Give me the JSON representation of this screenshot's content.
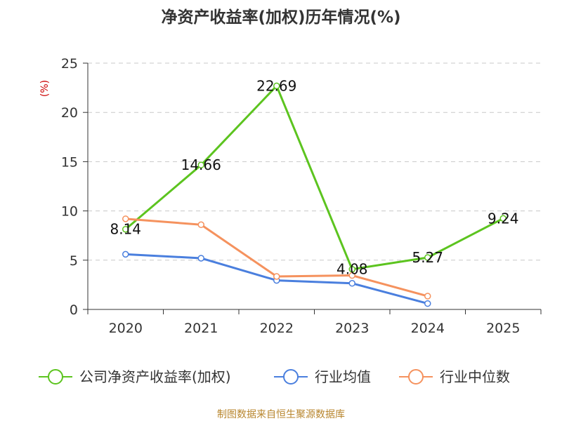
{
  "chart_data": {
    "type": "line",
    "title": "净资产收益率(加权)历年情况(%)",
    "ylabel": "(%)",
    "xlabel": "",
    "categories": [
      "2020",
      "2021",
      "2022",
      "2023",
      "2024",
      "2025"
    ],
    "ylim": [
      0,
      25
    ],
    "yticks": [
      0,
      5,
      10,
      15,
      20,
      25
    ],
    "grid": true,
    "legend_position": "bottom",
    "series": [
      {
        "name": "公司净资产收益率(加权)",
        "color": "#5cc41f",
        "values": [
          8.14,
          14.66,
          22.69,
          4.08,
          5.27,
          9.24
        ],
        "labels": [
          "8.14",
          "14.66",
          "22.69",
          "4.08",
          "5.27",
          "9.24"
        ]
      },
      {
        "name": "行业均值",
        "color": "#4a7fde",
        "values": [
          5.6,
          5.2,
          2.95,
          2.65,
          0.6,
          null
        ]
      },
      {
        "name": "行业中位数",
        "color": "#f5925e",
        "values": [
          9.2,
          8.6,
          3.35,
          3.45,
          1.35,
          null
        ]
      }
    ],
    "source": "制图数据来自恒生聚源数据库"
  }
}
